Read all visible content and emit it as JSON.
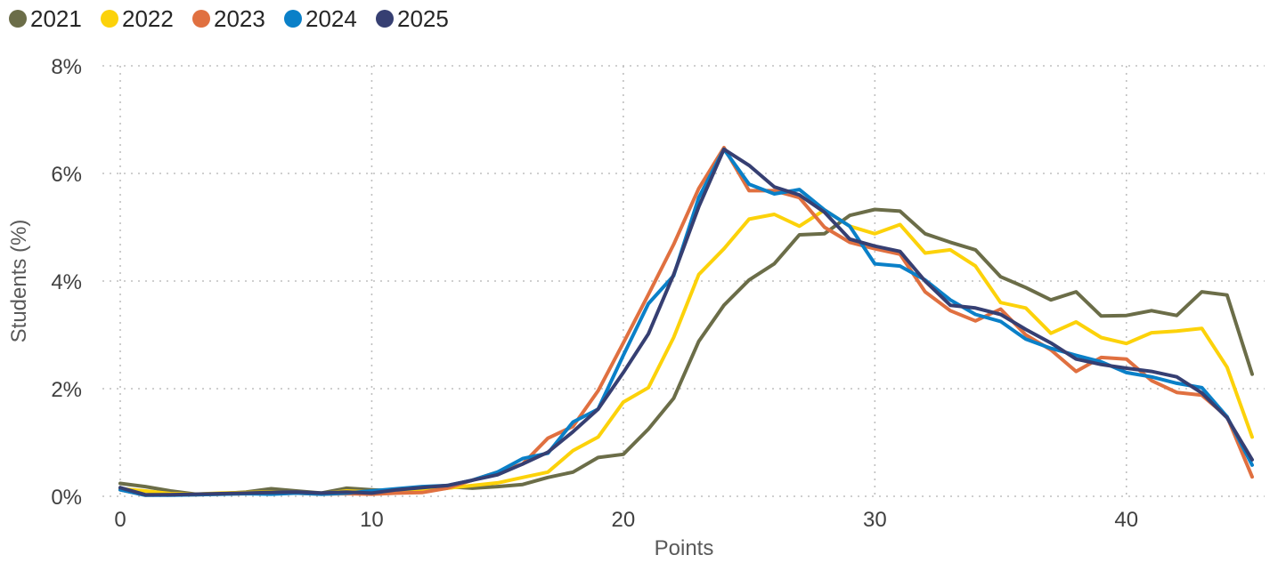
{
  "chart_data": {
    "type": "line",
    "title": "",
    "xlabel": "Points",
    "ylabel": "Students (%)",
    "xlim": [
      0,
      45
    ],
    "ylim": [
      0,
      8
    ],
    "x_ticks": [
      0,
      10,
      20,
      30,
      40
    ],
    "x_tick_labels": [
      "0",
      "10",
      "20",
      "30",
      "40"
    ],
    "y_ticks": [
      0,
      2,
      4,
      6,
      8
    ],
    "y_tick_labels": [
      "0%",
      "2%",
      "4%",
      "6%",
      "8%"
    ],
    "grid": "dotted, both axes",
    "legend_position": "top-left",
    "x": [
      0,
      1,
      2,
      3,
      4,
      5,
      6,
      7,
      8,
      9,
      10,
      11,
      12,
      13,
      14,
      15,
      16,
      17,
      18,
      19,
      20,
      21,
      22,
      23,
      24,
      25,
      26,
      27,
      28,
      29,
      30,
      31,
      32,
      33,
      34,
      35,
      36,
      37,
      38,
      39,
      40,
      41,
      42,
      43,
      44,
      45
    ],
    "series": [
      {
        "name": "2021",
        "color": "#6b6d48",
        "values": [
          0.24,
          0.18,
          0.1,
          0.04,
          0.05,
          0.08,
          0.14,
          0.1,
          0.06,
          0.15,
          0.12,
          0.1,
          0.12,
          0.18,
          0.15,
          0.18,
          0.22,
          0.35,
          0.45,
          0.72,
          0.78,
          1.25,
          1.82,
          2.88,
          3.55,
          4.02,
          4.32,
          4.86,
          4.88,
          5.22,
          5.33,
          5.3,
          4.88,
          4.72,
          4.58,
          4.08,
          3.88,
          3.65,
          3.8,
          3.35,
          3.36,
          3.45,
          3.36,
          3.8,
          3.74,
          2.27
        ]
      },
      {
        "name": "2022",
        "color": "#fcd20a",
        "values": [
          0.14,
          0.1,
          0.05,
          0.04,
          0.06,
          0.07,
          0.08,
          0.06,
          0.05,
          0.1,
          0.08,
          0.08,
          0.1,
          0.15,
          0.2,
          0.25,
          0.35,
          0.45,
          0.85,
          1.1,
          1.75,
          2.02,
          2.95,
          4.12,
          4.6,
          5.15,
          5.24,
          5.02,
          5.32,
          5.02,
          4.88,
          5.05,
          4.52,
          4.58,
          4.28,
          3.6,
          3.5,
          3.03,
          3.24,
          2.95,
          2.84,
          3.04,
          3.07,
          3.12,
          2.4,
          1.1
        ]
      },
      {
        "name": "2023",
        "color": "#e07040",
        "values": [
          0.12,
          0.02,
          0.03,
          0.03,
          0.04,
          0.05,
          0.05,
          0.06,
          0.04,
          0.05,
          0.04,
          0.06,
          0.07,
          0.15,
          0.3,
          0.45,
          0.6,
          1.08,
          1.3,
          1.96,
          2.85,
          3.75,
          4.68,
          5.72,
          6.48,
          5.68,
          5.68,
          5.55,
          5.0,
          4.72,
          4.6,
          4.5,
          3.8,
          3.45,
          3.26,
          3.48,
          3.0,
          2.72,
          2.32,
          2.58,
          2.55,
          2.15,
          1.93,
          1.88,
          1.48,
          0.36
        ]
      },
      {
        "name": "2024",
        "color": "#0a80c8",
        "values": [
          0.12,
          0.02,
          0.02,
          0.03,
          0.04,
          0.05,
          0.04,
          0.06,
          0.04,
          0.06,
          0.1,
          0.14,
          0.18,
          0.2,
          0.3,
          0.45,
          0.7,
          0.8,
          1.38,
          1.62,
          2.62,
          3.58,
          4.1,
          5.55,
          6.45,
          5.8,
          5.62,
          5.7,
          5.32,
          5.02,
          4.32,
          4.28,
          4.02,
          3.65,
          3.38,
          3.25,
          2.92,
          2.75,
          2.62,
          2.5,
          2.3,
          2.22,
          2.1,
          2.02,
          1.48,
          0.58
        ]
      },
      {
        "name": "2025",
        "color": "#363f72",
        "values": [
          0.16,
          0.03,
          0.03,
          0.04,
          0.05,
          0.06,
          0.07,
          0.08,
          0.06,
          0.08,
          0.06,
          0.12,
          0.16,
          0.2,
          0.3,
          0.4,
          0.6,
          0.82,
          1.2,
          1.62,
          2.3,
          3.02,
          4.12,
          5.38,
          6.45,
          6.15,
          5.75,
          5.6,
          5.28,
          4.78,
          4.65,
          4.55,
          4.0,
          3.55,
          3.5,
          3.38,
          3.1,
          2.85,
          2.55,
          2.45,
          2.38,
          2.32,
          2.22,
          1.92,
          1.46,
          0.68
        ]
      }
    ]
  }
}
